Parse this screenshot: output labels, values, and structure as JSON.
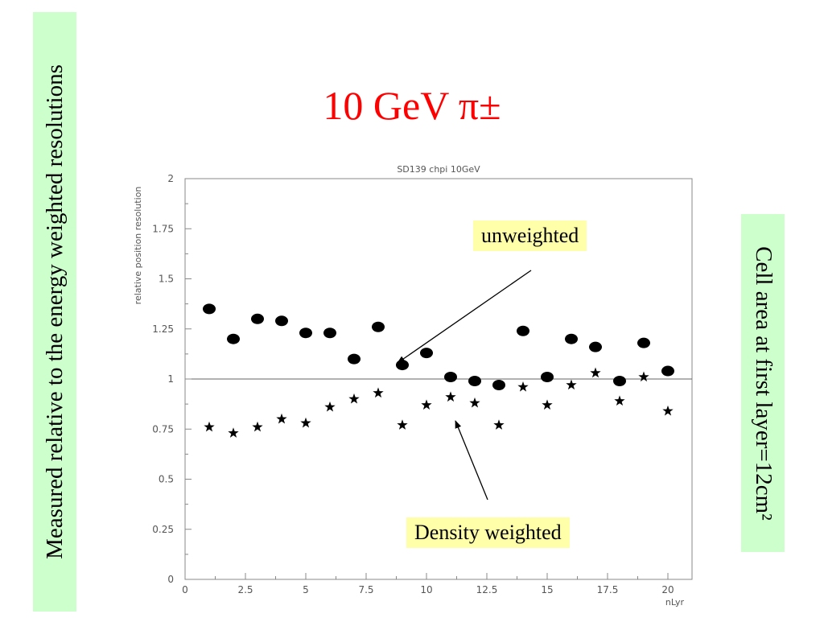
{
  "title": "10 GeV π±",
  "side_left": "Measured relative to the energy weighted resolutions",
  "side_right": "Cell area at first layer=12cm²",
  "annotations": {
    "unweighted": "unweighted",
    "density": "Density weighted"
  },
  "chart_data": {
    "type": "scatter",
    "title": "SD139 chpi 10GeV",
    "xlabel": "nLyr",
    "ylabel": "relative position resolution",
    "xlim": [
      0,
      21
    ],
    "ylim": [
      0,
      2
    ],
    "x_ticks": [
      "0",
      "2.5",
      "5",
      "7.5",
      "10",
      "12.5",
      "15",
      "17.5",
      "20"
    ],
    "y_ticks": [
      "0",
      "0.25",
      "0.5",
      "0.75",
      "1",
      "1.25",
      "1.5",
      "1.75",
      "2"
    ],
    "reference_line": 1,
    "series": [
      {
        "marker": "circle",
        "x": [
          1,
          2,
          3,
          4,
          5,
          6,
          7,
          8,
          9,
          10,
          11,
          12,
          13,
          14,
          15,
          16,
          17,
          18,
          19,
          20
        ],
        "y": [
          1.35,
          1.2,
          1.3,
          1.29,
          1.23,
          1.23,
          1.1,
          1.26,
          1.07,
          1.13,
          1.01,
          0.99,
          0.97,
          1.24,
          1.01,
          1.2,
          1.16,
          0.99,
          1.18,
          1.04
        ]
      },
      {
        "marker": "star",
        "x": [
          1,
          2,
          3,
          4,
          5,
          6,
          7,
          8,
          9,
          10,
          11,
          12,
          13,
          14,
          15,
          16,
          17,
          18,
          19,
          20
        ],
        "y": [
          0.76,
          0.73,
          0.76,
          0.8,
          0.78,
          0.86,
          0.9,
          0.93,
          0.77,
          0.87,
          0.91,
          0.88,
          0.77,
          0.96,
          0.87,
          0.97,
          1.03,
          0.89,
          1.01,
          0.84
        ]
      }
    ]
  }
}
